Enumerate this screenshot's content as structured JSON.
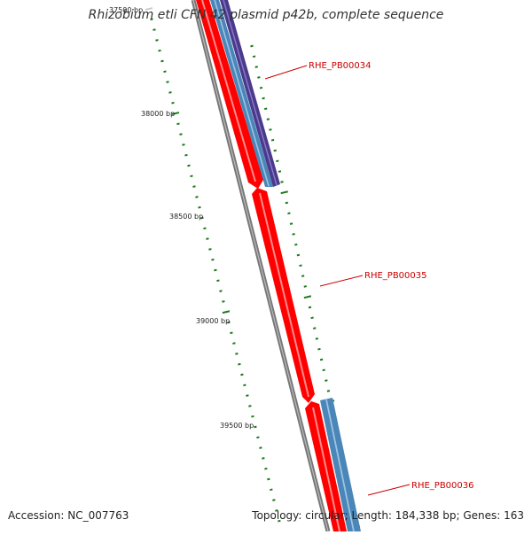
{
  "title": "Rhizobium etli CFN 42 plasmid p42b, complete sequence",
  "accession": "Accession: NC_007763",
  "topology": "Topology: circular; Length: 184,338 bp; Genes: 163",
  "colors": {
    "backbone": "#777777",
    "cds_red": "#ff0000",
    "cds_blue": "#4a86b8",
    "cds_purple": "#4b3a8c",
    "tick_green": "#1a7a1a",
    "gene_label": "#cc0000",
    "bp_label": "#222222"
  },
  "bp_labels": [
    "37500 bp",
    "38000 bp",
    "38500 bp",
    "39000 bp",
    "39500 bp"
  ],
  "genes": [
    {
      "name": "RHE_PB00034",
      "features": [
        "cds_red",
        "cds_blue",
        "cds_purple"
      ]
    },
    {
      "name": "RHE_PB00035",
      "features": [
        "cds_red"
      ]
    },
    {
      "name": "RHE_PB00036",
      "features": [
        "cds_red",
        "cds_blue"
      ]
    }
  ]
}
